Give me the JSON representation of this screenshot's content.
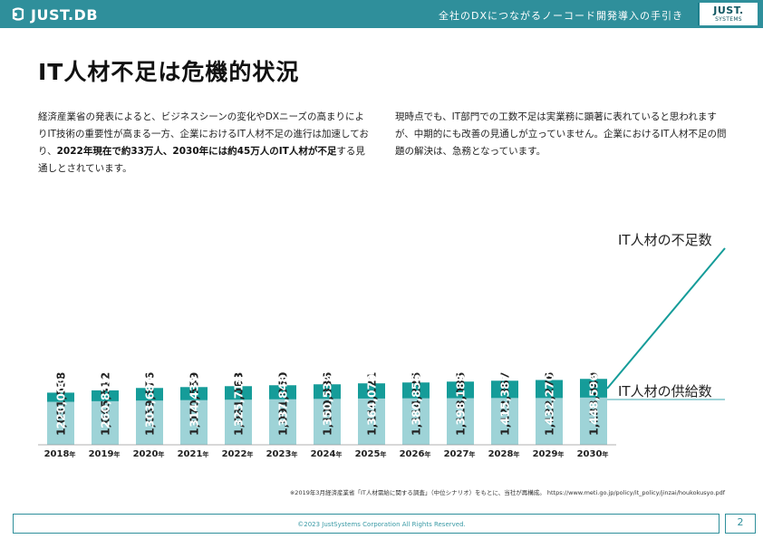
{
  "header": {
    "logo_text": "JUST.DB",
    "tagline": "全社のDXにつながるノーコード開発導入の手引き",
    "brand_main": "JUST.",
    "brand_sub": "SYSTEMS",
    "accent_color": "#2f8f9b"
  },
  "page": {
    "title": "IT人材不足は危機的状況",
    "para_left": [
      {
        "text": "経済産業省の発表によると、ビジネスシーンの変化やDXニーズの高まり",
        "bold": false
      },
      {
        "text": "によりIT技術の重要性が高まる一方、企業におけるIT人材不足の進行は",
        "bold": false
      },
      {
        "text": "加速しており、",
        "bold": false
      },
      {
        "text": "2022年現在で約33万人、2030年には約45万人のIT人材",
        "bold": true
      },
      {
        "text": "が不足",
        "bold": true
      },
      {
        "text": "する見通しとされています。",
        "bold": false
      }
    ],
    "para_right": "現時点でも、IT部門での工数不足は実業務に顕著に表れていると思われますが、中期的にも改善の見通しが立っていません。企業におけるIT人材不足の問題の解決は、急務となっています。",
    "source": "※2019年3月経済産業省「IT人材需給に関する調査」（中位シナリオ）をもとに、当社が再構成。 https://www.meti.go.jp/policy/it_policy/jinzai/houkokusyo.pdf",
    "copyright": "©2023 JustSystems Corporation All Rights Reserved.",
    "page_number": "2"
  },
  "chart_data": {
    "type": "bar",
    "stacked": true,
    "categories": [
      "2018",
      "2019",
      "2020",
      "2021",
      "2022",
      "2023",
      "2024",
      "2025",
      "2026",
      "2027",
      "2028",
      "2029",
      "2030"
    ],
    "category_suffix": "年",
    "series": [
      {
        "name": "IT人材の供給数",
        "values": [
          1031538,
          1045512,
          1059876,
          1070559,
          1081063,
          1091050,
          1100836,
          1110121,
          1114225,
          1118085,
          1122367,
          1122276,
          1133049
        ],
        "color": "#9ed3d7",
        "label_color": "#222222"
      },
      {
        "name": "IT人材の不足数",
        "values": [
          220000,
          260835,
          303680,
          314439,
          325714,
          337848,
          350532,
          364070,
          380856,
          398183,
          415387,
          432270,
          448596
        ],
        "color": "#159c99",
        "label_color": "#ffffff"
      }
    ],
    "legend_placement": "right",
    "grid": false
  }
}
